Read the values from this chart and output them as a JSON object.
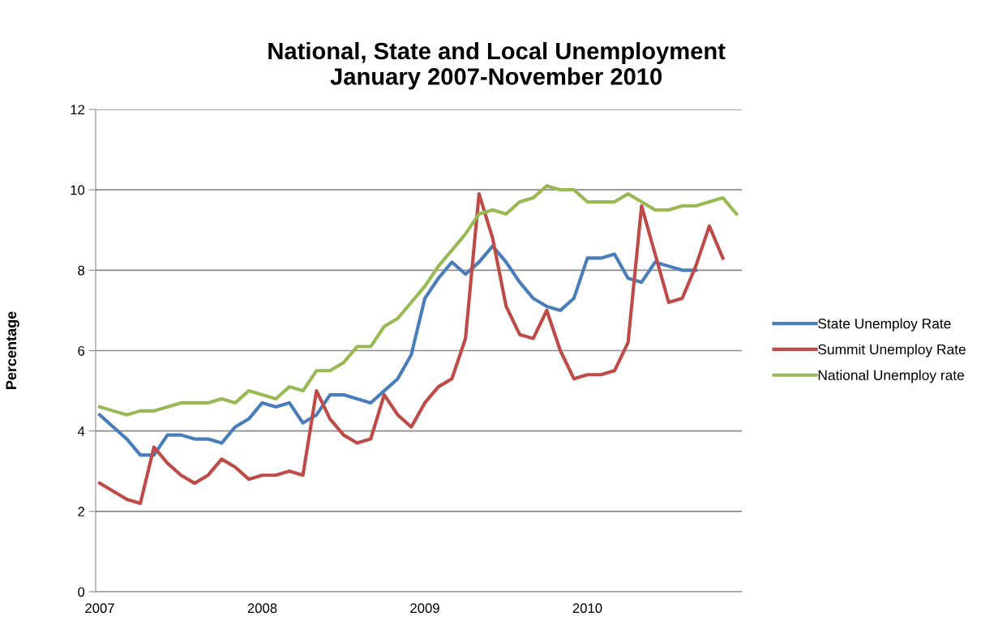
{
  "chart_data": {
    "type": "line",
    "title": "National, State and Local Unemployment\nJanuary 2007-November 2010",
    "ylabel": "Percentage",
    "categories": [
      "2007",
      null,
      null,
      null,
      null,
      null,
      null,
      null,
      null,
      null,
      null,
      null,
      "2008",
      null,
      null,
      null,
      null,
      null,
      null,
      null,
      null,
      null,
      null,
      null,
      "2009",
      null,
      null,
      null,
      null,
      null,
      null,
      null,
      null,
      null,
      null,
      null,
      "2010",
      null,
      null,
      null,
      null,
      null,
      null,
      null,
      null,
      null,
      null,
      null
    ],
    "series": [
      {
        "name": "State Unemploy Rate",
        "color": "#4a7ebb",
        "values": [
          4.4,
          4.1,
          3.8,
          3.4,
          3.4,
          3.9,
          3.9,
          3.8,
          3.8,
          3.7,
          4.1,
          4.3,
          4.7,
          4.6,
          4.7,
          4.2,
          4.4,
          4.9,
          4.9,
          4.8,
          4.7,
          5.0,
          5.3,
          5.9,
          7.3,
          7.8,
          8.2,
          7.9,
          8.2,
          8.6,
          8.2,
          7.7,
          7.3,
          7.1,
          7.0,
          7.3,
          8.3,
          8.3,
          8.4,
          7.8,
          7.7,
          8.2,
          8.1,
          8.0,
          8.0,
          null,
          null,
          null
        ]
      },
      {
        "name": "Summit Unemploy Rate",
        "color": "#be4b48",
        "values": [
          2.7,
          2.5,
          2.3,
          2.2,
          3.6,
          3.2,
          2.9,
          2.7,
          2.9,
          3.3,
          3.1,
          2.8,
          2.9,
          2.9,
          3.0,
          2.9,
          5.0,
          4.3,
          3.9,
          3.7,
          3.8,
          4.9,
          4.4,
          4.1,
          4.7,
          5.1,
          5.3,
          6.3,
          9.9,
          8.8,
          7.1,
          6.4,
          6.3,
          7.0,
          6.0,
          5.3,
          5.4,
          5.4,
          5.5,
          6.2,
          9.6,
          8.4,
          7.2,
          7.3,
          8.1,
          9.1,
          8.3,
          null
        ]
      },
      {
        "name": "National Unemploy rate",
        "color": "#98b954",
        "values": [
          4.6,
          4.5,
          4.4,
          4.5,
          4.5,
          4.6,
          4.7,
          4.7,
          4.7,
          4.8,
          4.7,
          5.0,
          4.9,
          4.8,
          5.1,
          5.0,
          5.5,
          5.5,
          5.7,
          6.1,
          6.1,
          6.6,
          6.8,
          7.2,
          7.6,
          8.1,
          8.5,
          8.9,
          9.4,
          9.5,
          9.4,
          9.7,
          9.8,
          10.1,
          10.0,
          10.0,
          9.7,
          9.7,
          9.7,
          9.9,
          9.7,
          9.5,
          9.5,
          9.6,
          9.6,
          9.7,
          9.8,
          9.4
        ]
      }
    ],
    "ylim": [
      0,
      12
    ],
    "yticks": [
      0,
      2,
      4,
      6,
      8,
      10,
      12
    ],
    "grid": "y",
    "legend": "right",
    "marker": "none",
    "line_style": "solid"
  }
}
